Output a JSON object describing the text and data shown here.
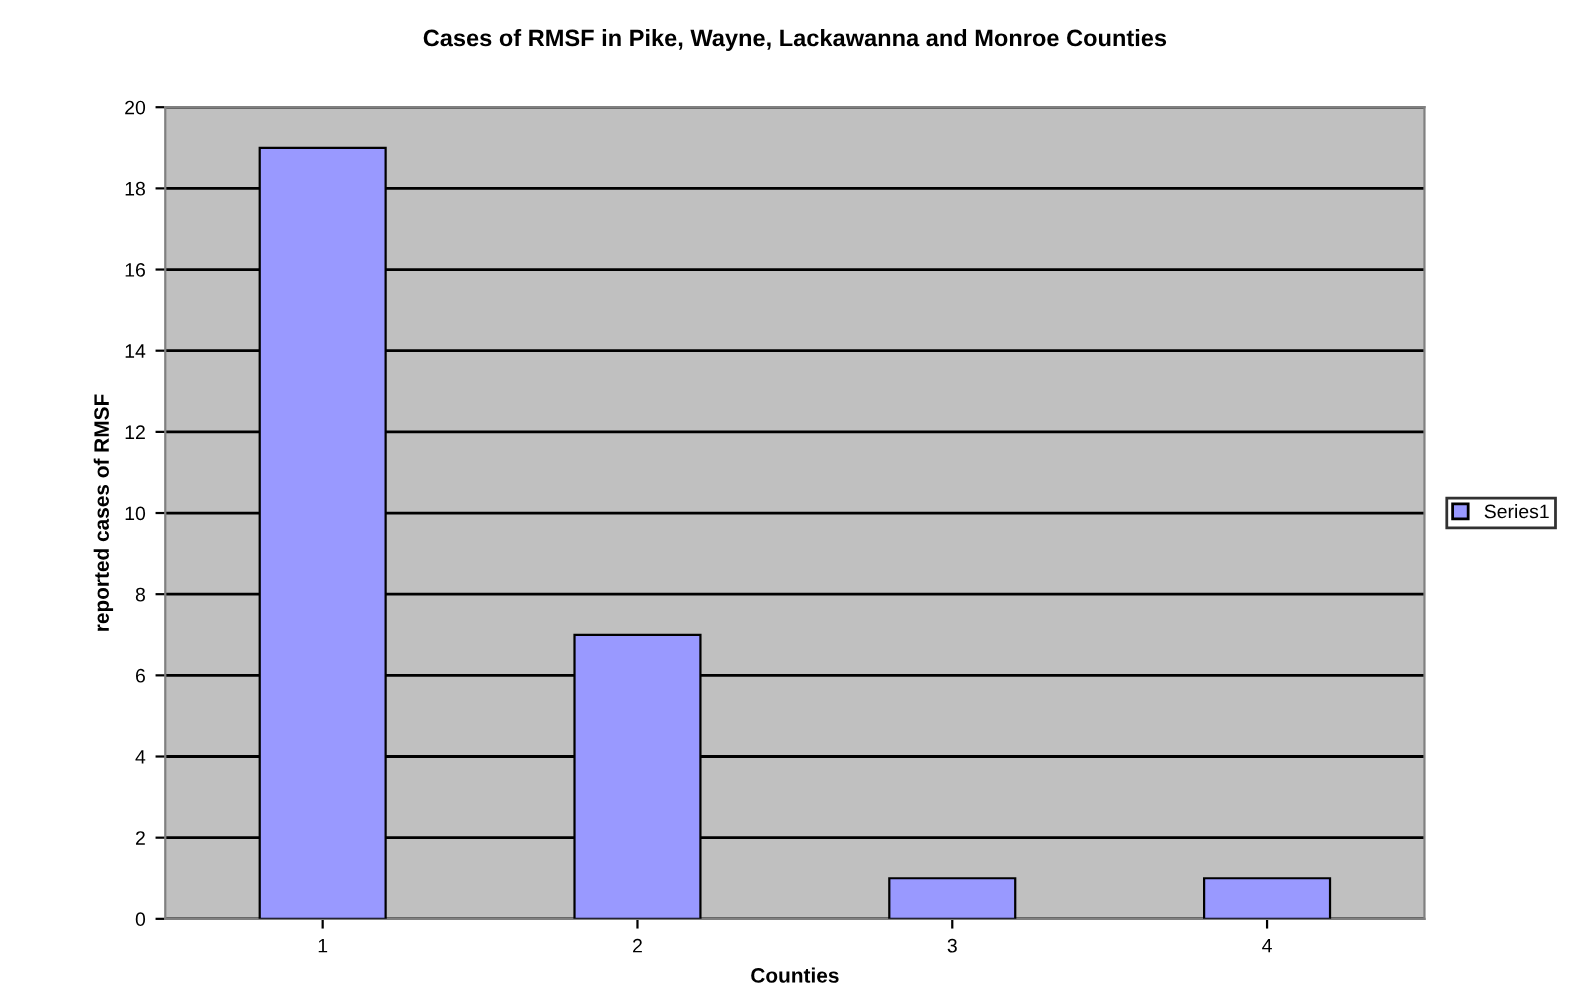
{
  "chart_data": {
    "type": "bar",
    "title": "Cases of RMSF in Pike, Wayne, Lackawanna and Monroe Counties",
    "xlabel": "Counties",
    "ylabel": "reported cases of RMSF",
    "categories": [
      "1",
      "2",
      "3",
      "4"
    ],
    "series": [
      {
        "name": "Series1",
        "color": "#9999ff",
        "values": [
          19,
          7,
          1,
          1
        ]
      }
    ],
    "ylim": [
      0,
      20
    ],
    "yticks": [
      0,
      2,
      4,
      6,
      8,
      10,
      12,
      14,
      16,
      18,
      20
    ],
    "grid": "y",
    "legend": "right"
  }
}
